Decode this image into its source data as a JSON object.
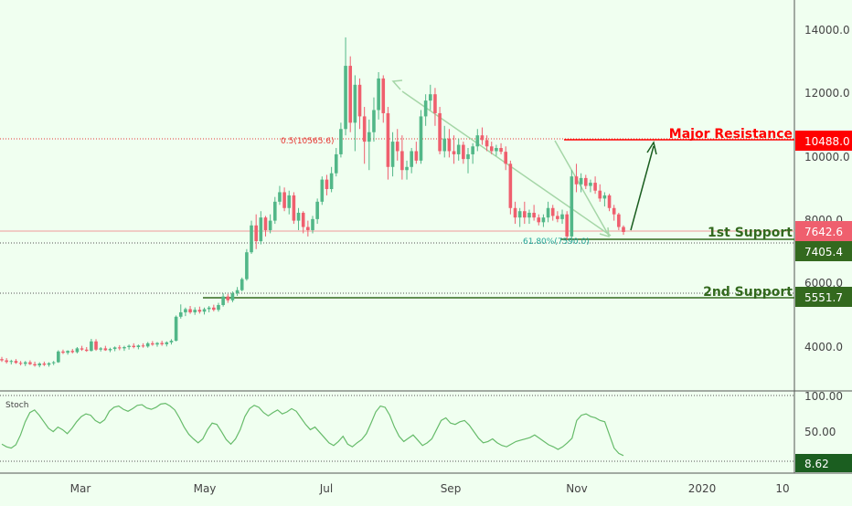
{
  "chart_data": [
    {
      "type": "candlestick",
      "title": "",
      "y_range": [
        2800,
        15400
      ],
      "y_ticks": [
        "14000.0",
        "12000.0",
        "10000.0",
        "8000.0",
        "6000.0",
        "4000.0"
      ],
      "x_ticks": [
        "Mar",
        "May",
        "Jul",
        "Sep",
        "Nov",
        "2020",
        "10"
      ],
      "ohlc": [
        [
          3620,
          3690,
          3530,
          3580
        ],
        [
          3580,
          3650,
          3480,
          3530
        ],
        [
          3530,
          3600,
          3450,
          3560
        ],
        [
          3560,
          3620,
          3470,
          3500
        ],
        [
          3500,
          3560,
          3420,
          3470
        ],
        [
          3470,
          3560,
          3400,
          3520
        ],
        [
          3520,
          3580,
          3430,
          3460
        ],
        [
          3460,
          3540,
          3380,
          3420
        ],
        [
          3420,
          3520,
          3360,
          3480
        ],
        [
          3480,
          3540,
          3400,
          3440
        ],
        [
          3440,
          3520,
          3380,
          3490
        ],
        [
          3490,
          3560,
          3430,
          3520
        ],
        [
          3520,
          3900,
          3500,
          3860
        ],
        [
          3860,
          3920,
          3780,
          3820
        ],
        [
          3820,
          3900,
          3760,
          3880
        ],
        [
          3880,
          3940,
          3800,
          3840
        ],
        [
          3840,
          4000,
          3800,
          3960
        ],
        [
          3960,
          4040,
          3880,
          3920
        ],
        [
          3920,
          4000,
          3850,
          3880
        ],
        [
          3880,
          4260,
          3860,
          4180
        ],
        [
          4180,
          4250,
          3880,
          3920
        ],
        [
          3920,
          4000,
          3860,
          3960
        ],
        [
          3960,
          4040,
          3880,
          3900
        ],
        [
          3900,
          3980,
          3840,
          3940
        ],
        [
          3940,
          4020,
          3870,
          3990
        ],
        [
          3990,
          4060,
          3900,
          3960
        ],
        [
          3960,
          4040,
          3880,
          4000
        ],
        [
          4000,
          4080,
          3920,
          4040
        ],
        [
          4040,
          4120,
          3960,
          4000
        ],
        [
          4000,
          4080,
          3930,
          4050
        ],
        [
          4050,
          4120,
          3980,
          4020
        ],
        [
          4020,
          4160,
          3980,
          4120
        ],
        [
          4120,
          4190,
          4040,
          4080
        ],
        [
          4080,
          4160,
          4010,
          4130
        ],
        [
          4130,
          4200,
          4040,
          4090
        ],
        [
          4090,
          4180,
          4020,
          4150
        ],
        [
          4150,
          4250,
          4080,
          4200
        ],
        [
          4200,
          5000,
          4180,
          4960
        ],
        [
          4960,
          5350,
          4900,
          5100
        ],
        [
          5100,
          5250,
          4980,
          5200
        ],
        [
          5200,
          5300,
          5050,
          5100
        ],
        [
          5100,
          5260,
          5020,
          5180
        ],
        [
          5180,
          5280,
          5060,
          5120
        ],
        [
          5120,
          5250,
          5030,
          5200
        ],
        [
          5200,
          5300,
          5100,
          5250
        ],
        [
          5250,
          5340,
          5130,
          5180
        ],
        [
          5180,
          5400,
          5120,
          5330
        ],
        [
          5330,
          5700,
          5280,
          5600
        ],
        [
          5600,
          5680,
          5400,
          5480
        ],
        [
          5480,
          5760,
          5420,
          5700
        ],
        [
          5700,
          5900,
          5620,
          5800
        ],
        [
          5800,
          6200,
          5760,
          6150
        ],
        [
          6150,
          7100,
          6100,
          7000
        ],
        [
          7000,
          8000,
          6950,
          7850
        ],
        [
          7850,
          8200,
          7100,
          7350
        ],
        [
          7350,
          8300,
          7250,
          8100
        ],
        [
          8100,
          8150,
          7500,
          7700
        ],
        [
          7700,
          8200,
          7600,
          8000
        ],
        [
          8000,
          8750,
          7900,
          8600
        ],
        [
          8600,
          9100,
          8500,
          8900
        ],
        [
          8900,
          9050,
          8300,
          8400
        ],
        [
          8400,
          8950,
          8200,
          8800
        ],
        [
          8800,
          8900,
          7900,
          8000
        ],
        [
          8000,
          8400,
          7700,
          8250
        ],
        [
          8250,
          8300,
          7600,
          7800
        ],
        [
          7800,
          8000,
          7500,
          7700
        ],
        [
          7700,
          8150,
          7600,
          8050
        ],
        [
          8050,
          8700,
          7900,
          8600
        ],
        [
          8600,
          9400,
          8500,
          9300
        ],
        [
          9300,
          9450,
          8800,
          9000
        ],
        [
          9000,
          9700,
          8900,
          9500
        ],
        [
          9500,
          10300,
          9400,
          10100
        ],
        [
          10100,
          11100,
          10000,
          10900
        ],
        [
          10900,
          13800,
          10700,
          12900
        ],
        [
          12900,
          13200,
          10800,
          11100
        ],
        [
          11100,
          12600,
          10200,
          12300
        ],
        [
          12300,
          12500,
          10900,
          11300
        ],
        [
          11300,
          11600,
          9800,
          10500
        ],
        [
          10500,
          11200,
          9600,
          10800
        ],
        [
          10800,
          11900,
          10500,
          11500
        ],
        [
          11500,
          12700,
          11200,
          12500
        ],
        [
          12500,
          12600,
          11100,
          11400
        ],
        [
          11400,
          11600,
          9300,
          9700
        ],
        [
          9700,
          10800,
          9400,
          10500
        ],
        [
          10500,
          10900,
          9900,
          10200
        ],
        [
          10200,
          10700,
          9300,
          9600
        ],
        [
          9600,
          9900,
          9300,
          9700
        ],
        [
          9700,
          10300,
          9500,
          10200
        ],
        [
          10200,
          10500,
          9800,
          9900
        ],
        [
          9900,
          11500,
          9800,
          11300
        ],
        [
          11300,
          12000,
          11000,
          11800
        ],
        [
          11800,
          12300,
          11500,
          12000
        ],
        [
          12000,
          12200,
          11000,
          11400
        ],
        [
          11400,
          11600,
          10100,
          10200
        ],
        [
          10200,
          11000,
          10000,
          10600
        ],
        [
          10600,
          10900,
          10000,
          10200
        ],
        [
          10200,
          10700,
          9800,
          10100
        ],
        [
          10100,
          10600,
          9900,
          10400
        ],
        [
          10400,
          10500,
          9800,
          9950
        ],
        [
          9950,
          10300,
          9500,
          10100
        ],
        [
          10100,
          10450,
          9800,
          10350
        ],
        [
          10350,
          10900,
          10200,
          10700
        ],
        [
          10700,
          10950,
          10400,
          10550
        ],
        [
          10550,
          10700,
          10200,
          10350
        ],
        [
          10350,
          10500,
          10100,
          10200
        ],
        [
          10200,
          10400,
          10050,
          10300
        ],
        [
          10300,
          10450,
          10100,
          10180
        ],
        [
          10180,
          10350,
          9600,
          9800
        ],
        [
          9800,
          9900,
          8200,
          8400
        ],
        [
          8400,
          8600,
          7900,
          8100
        ],
        [
          8100,
          8400,
          7800,
          8300
        ],
        [
          8300,
          8600,
          7900,
          8100
        ],
        [
          8100,
          8350,
          7900,
          8250
        ],
        [
          8250,
          8500,
          8000,
          8100
        ],
        [
          8100,
          8200,
          7850,
          7950
        ],
        [
          7950,
          8200,
          7800,
          8100
        ],
        [
          8100,
          8600,
          7950,
          8400
        ],
        [
          8400,
          8500,
          8000,
          8150
        ],
        [
          8150,
          8300,
          7950,
          8050
        ],
        [
          8050,
          8350,
          7900,
          8200
        ],
        [
          8200,
          8300,
          7400,
          7500
        ],
        [
          7500,
          9600,
          7400,
          9400
        ],
        [
          9400,
          9800,
          8900,
          9150
        ],
        [
          9150,
          9500,
          8900,
          9350
        ],
        [
          9350,
          9450,
          9000,
          9100
        ],
        [
          9100,
          9300,
          8900,
          9200
        ],
        [
          9200,
          9400,
          8850,
          8950
        ],
        [
          8950,
          9150,
          8600,
          8700
        ],
        [
          8700,
          8900,
          8450,
          8800
        ],
        [
          8800,
          8850,
          8300,
          8400
        ],
        [
          8400,
          8500,
          8000,
          8200
        ],
        [
          8200,
          8250,
          7700,
          7800
        ],
        [
          7800,
          7850,
          7550,
          7642.6
        ]
      ],
      "stochastic": {
        "label": "Stoch",
        "ticks": [
          "100.00",
          "50.00"
        ],
        "current_value": "8.62",
        "values": [
          26,
          22,
          20,
          25,
          40,
          60,
          74,
          78,
          70,
          60,
          50,
          45,
          52,
          48,
          42,
          50,
          60,
          68,
          72,
          70,
          62,
          58,
          63,
          76,
          82,
          84,
          79,
          76,
          80,
          85,
          86,
          81,
          79,
          82,
          87,
          88,
          84,
          78,
          66,
          52,
          41,
          34,
          28,
          34,
          48,
          58,
          56,
          45,
          33,
          26,
          34,
          48,
          68,
          80,
          85,
          82,
          74,
          69,
          74,
          78,
          72,
          75,
          80,
          76,
          66,
          56,
          48,
          52,
          44,
          36,
          28,
          24,
          30,
          38,
          26,
          22,
          28,
          33,
          42,
          58,
          75,
          84,
          82,
          70,
          52,
          38,
          30,
          35,
          40,
          32,
          24,
          28,
          34,
          48,
          62,
          66,
          58,
          56,
          60,
          62,
          55,
          45,
          35,
          28,
          30,
          34,
          28,
          24,
          22,
          26,
          30,
          32,
          34,
          36,
          40,
          35,
          30,
          25,
          22,
          18,
          22,
          28,
          35,
          62,
          70,
          72,
          68,
          66,
          62,
          60,
          40,
          20,
          12,
          8.62
        ]
      },
      "levels": [
        {
          "label": "Major Resistance",
          "value": 10488.0,
          "price_label": "10488.0",
          "color": "#ff0000"
        },
        {
          "label": "1st Support",
          "value": 7405.4,
          "price_label": "7405.4",
          "color": "#33691e"
        },
        {
          "label": "2nd Support",
          "value": 5551.7,
          "price_label": "5551.7",
          "color": "#33691e"
        }
      ],
      "current_price": {
        "value": 7642.6,
        "label": "7642.6",
        "color": "#ef5f6e"
      },
      "annotations": [
        {
          "text": "0.5(10565.6)",
          "color": "#e53935"
        },
        {
          "text": "61.80%(7590.0)",
          "color": "#26a69a"
        }
      ],
      "colors": {
        "up": "#52b788",
        "down": "#ef5f6e",
        "background": "#f0fff0",
        "stoch_line": "#66bb6a",
        "arrow": "#1b5e20",
        "axis_text": "#444444"
      }
    }
  ]
}
